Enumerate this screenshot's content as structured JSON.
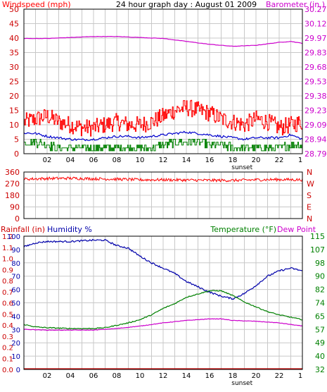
{
  "title": "24 hour graph day : August 01 2009",
  "colors": {
    "wind": "#ff0000",
    "gust": "#ff0000",
    "avg": "#0000cc",
    "low": "#008000",
    "baro": "#cc00cc",
    "humidity": "#0000aa",
    "temperature": "#008000",
    "dewpoint": "#cc00cc",
    "rain": "#cc0000",
    "grid": "#c8c8c8",
    "background": "#ffffff"
  },
  "chart_data": [
    {
      "type": "line",
      "panel": "wind-barometer",
      "left_axis_label": "Windspeed (mph)",
      "right_axis_label": "Barometer (in.)",
      "left_ticks": [
        0,
        5,
        10,
        15,
        20,
        25,
        30,
        35,
        40,
        45,
        50
      ],
      "right_ticks": [
        "28.79",
        "28.94",
        "29.09",
        "29.23",
        "29.38",
        "29.53",
        "29.68",
        "29.83",
        "29.97",
        "30.12",
        "30.27"
      ],
      "x_ticks": [
        "02",
        "04",
        "06",
        "08",
        "10",
        "12",
        "14",
        "16",
        "18",
        "20",
        "22"
      ],
      "x_annotation": "sunset",
      "ylim": [
        0,
        50
      ],
      "series": [
        {
          "key": "gust",
          "points": [
            [
              0,
              11
            ],
            [
              1,
              12
            ],
            [
              2,
              13
            ],
            [
              3,
              11
            ],
            [
              4,
              10
            ],
            [
              5,
              9
            ],
            [
              6,
              9
            ],
            [
              7,
              10
            ],
            [
              8,
              11
            ],
            [
              9,
              10
            ],
            [
              10,
              10
            ],
            [
              11,
              11
            ],
            [
              12,
              13
            ],
            [
              13,
              15
            ],
            [
              14,
              16
            ],
            [
              15,
              15
            ],
            [
              16,
              14
            ],
            [
              17,
              12
            ],
            [
              18,
              11
            ],
            [
              19,
              10
            ],
            [
              20,
              12
            ],
            [
              21,
              11
            ],
            [
              22,
              9
            ],
            [
              23,
              10
            ],
            [
              24,
              11
            ]
          ]
        },
        {
          "key": "avg",
          "points": [
            [
              0,
              7.2
            ],
            [
              1,
              7
            ],
            [
              2,
              6
            ],
            [
              3,
              5.5
            ],
            [
              4,
              5
            ],
            [
              5,
              4.8
            ],
            [
              6,
              5
            ],
            [
              7,
              5.5
            ],
            [
              8,
              6
            ],
            [
              9,
              6
            ],
            [
              10,
              5.5
            ],
            [
              11,
              6
            ],
            [
              12,
              6.5
            ],
            [
              13,
              7
            ],
            [
              14,
              7.5
            ],
            [
              15,
              7
            ],
            [
              16,
              6.5
            ],
            [
              17,
              6
            ],
            [
              18,
              5.5
            ],
            [
              19,
              5
            ],
            [
              20,
              5.5
            ],
            [
              21,
              5.5
            ],
            [
              22,
              5.5
            ],
            [
              23,
              6.5
            ],
            [
              24,
              5
            ]
          ]
        },
        {
          "key": "low",
          "points": [
            [
              0,
              4
            ],
            [
              1,
              4
            ],
            [
              2,
              3
            ],
            [
              3,
              2
            ],
            [
              4,
              2
            ],
            [
              5,
              2
            ],
            [
              6,
              2
            ],
            [
              7,
              2
            ],
            [
              8,
              2
            ],
            [
              9,
              2
            ],
            [
              10,
              2
            ],
            [
              11,
              2
            ],
            [
              12,
              3
            ],
            [
              13,
              4
            ],
            [
              14,
              4
            ],
            [
              15,
              4
            ],
            [
              16,
              3
            ],
            [
              17,
              3
            ],
            [
              18,
              2
            ],
            [
              19,
              2
            ],
            [
              20,
              2
            ],
            [
              21,
              2
            ],
            [
              22,
              2
            ],
            [
              23,
              3
            ],
            [
              24,
              3
            ]
          ]
        },
        {
          "key": "baro",
          "points": [
            [
              0,
              29.97
            ],
            [
              2,
              29.97
            ],
            [
              4,
              29.98
            ],
            [
              6,
              29.99
            ],
            [
              8,
              29.99
            ],
            [
              10,
              29.98
            ],
            [
              12,
              29.97
            ],
            [
              14,
              29.94
            ],
            [
              16,
              29.91
            ],
            [
              18,
              29.89
            ],
            [
              20,
              29.9
            ],
            [
              22,
              29.93
            ],
            [
              23,
              29.94
            ],
            [
              24,
              29.92
            ]
          ]
        }
      ]
    },
    {
      "type": "line",
      "panel": "wind-direction",
      "left_ticks": [
        0,
        90,
        180,
        270,
        360
      ],
      "right_ticks": [
        "N",
        "E",
        "S",
        "W",
        "N"
      ],
      "ylim": [
        0,
        360
      ],
      "series": [
        {
          "key": "direction",
          "points": [
            [
              0,
              305
            ],
            [
              2,
              310
            ],
            [
              4,
              312
            ],
            [
              6,
              308
            ],
            [
              8,
              305
            ],
            [
              10,
              300
            ],
            [
              12,
              300
            ],
            [
              14,
              298
            ],
            [
              16,
              296
            ],
            [
              18,
              295
            ],
            [
              20,
              300
            ],
            [
              22,
              302
            ],
            [
              24,
              300
            ]
          ]
        }
      ]
    },
    {
      "type": "line",
      "panel": "temperature-humidity",
      "left_axis_label_rain": "Rainfall (in)",
      "left_axis_label_humidity": "Humidity %",
      "right_axis_label_temp": "Temperature (°F)",
      "right_axis_label_dew": "Dew Point",
      "rain_ticks": [
        "0.0",
        "0.1",
        "0.2",
        "0.3",
        "0.4",
        "0.5",
        "0.6",
        "0.7",
        "0.8",
        "0.9",
        "1.0",
        "1.1",
        "1.2"
      ],
      "humidity_ticks": [
        0,
        10,
        20,
        30,
        40,
        50,
        60,
        70,
        80,
        90,
        100
      ],
      "temp_ticks": [
        32,
        40,
        49,
        57,
        65,
        74,
        82,
        90,
        98,
        107,
        115
      ],
      "x_ticks": [
        "02",
        "04",
        "06",
        "08",
        "10",
        "12",
        "14",
        "16",
        "18",
        "20",
        "22"
      ],
      "x_annotation": "sunset",
      "series": [
        {
          "key": "humidity",
          "axis": "humidity",
          "points": [
            [
              0,
              92
            ],
            [
              1,
              95
            ],
            [
              2,
              96
            ],
            [
              4,
              96
            ],
            [
              6,
              97
            ],
            [
              7,
              97
            ],
            [
              8,
              93
            ],
            [
              9,
              91
            ],
            [
              10,
              85
            ],
            [
              11,
              80
            ],
            [
              12,
              76
            ],
            [
              13,
              72
            ],
            [
              14,
              66
            ],
            [
              15,
              62
            ],
            [
              16,
              58
            ],
            [
              17,
              55
            ],
            [
              18,
              53
            ],
            [
              19,
              57
            ],
            [
              20,
              63
            ],
            [
              21,
              70
            ],
            [
              22,
              74
            ],
            [
              23,
              76
            ],
            [
              24,
              74
            ]
          ]
        },
        {
          "key": "temperature",
          "axis": "temp",
          "points": [
            [
              0,
              60
            ],
            [
              1,
              58.5
            ],
            [
              2,
              58
            ],
            [
              4,
              57.5
            ],
            [
              6,
              57.5
            ],
            [
              7,
              58
            ],
            [
              8,
              59.5
            ],
            [
              9,
              61
            ],
            [
              10,
              63
            ],
            [
              11,
              66
            ],
            [
              12,
              70
            ],
            [
              13,
              73
            ],
            [
              14,
              77
            ],
            [
              15,
              79
            ],
            [
              16,
              81
            ],
            [
              17,
              81
            ],
            [
              18,
              78
            ],
            [
              19,
              74
            ],
            [
              20,
              71
            ],
            [
              21,
              68
            ],
            [
              22,
              66
            ],
            [
              23,
              64.5
            ],
            [
              24,
              63
            ]
          ]
        },
        {
          "key": "dewpoint",
          "axis": "temp",
          "points": [
            [
              0,
              57
            ],
            [
              2,
              56.5
            ],
            [
              4,
              56.5
            ],
            [
              6,
              56.5
            ],
            [
              8,
              57.5
            ],
            [
              10,
              59
            ],
            [
              12,
              61
            ],
            [
              14,
              62.5
            ],
            [
              16,
              63.5
            ],
            [
              17,
              63.5
            ],
            [
              18,
              62.5
            ],
            [
              20,
              62
            ],
            [
              22,
              61
            ],
            [
              24,
              59
            ]
          ]
        },
        {
          "key": "rain",
          "axis": "rain",
          "points": [
            [
              0,
              0
            ],
            [
              24,
              0
            ]
          ]
        }
      ]
    }
  ]
}
